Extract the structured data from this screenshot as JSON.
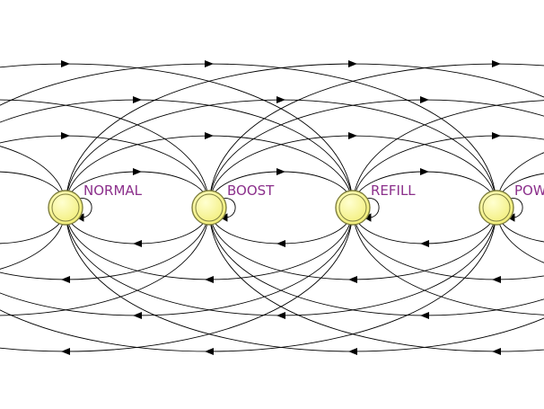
{
  "states": [
    {
      "id": "normal",
      "label": "NORMAL"
    },
    {
      "id": "boost",
      "label": "BOOST"
    },
    {
      "id": "refill",
      "label": "REFILL"
    },
    {
      "id": "power",
      "label": "POW"
    }
  ],
  "colors": {
    "node_fill": "#ffff99",
    "node_stroke": "#7f7f3f",
    "label": "#8b2f8b",
    "edge": "#000000"
  }
}
